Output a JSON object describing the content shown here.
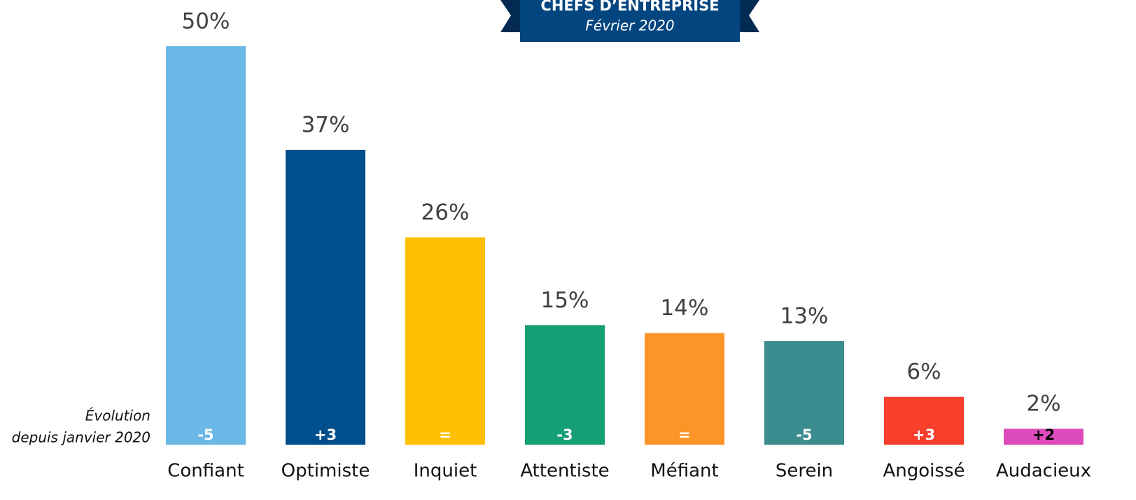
{
  "chart_data": {
    "type": "bar",
    "title": "CHEFS D’ENTREPRISE",
    "subtitle": "Février 2020",
    "annotation_lines": [
      "Évolution",
      "depuis janvier 2020"
    ],
    "categories": [
      "Confiant",
      "Optimiste",
      "Inquiet",
      "Attentiste",
      "Méfiant",
      "Serein",
      "Angoissé",
      "Audacieux"
    ],
    "values": [
      50,
      37,
      26,
      15,
      14,
      13,
      6,
      2
    ],
    "value_labels": [
      "50%",
      "37%",
      "26%",
      "15%",
      "14%",
      "13%",
      "6%",
      "2%"
    ],
    "colors": [
      "#6bb8e8",
      "#004f8c",
      "#fdc000",
      "#169e74",
      "#fd9428",
      "#3b8c8f",
      "#f83f2c",
      "#dd4aba"
    ],
    "change_labels": [
      "-5",
      "+3",
      "=",
      "-3",
      "=",
      "-5",
      "+3",
      "+2"
    ]
  }
}
